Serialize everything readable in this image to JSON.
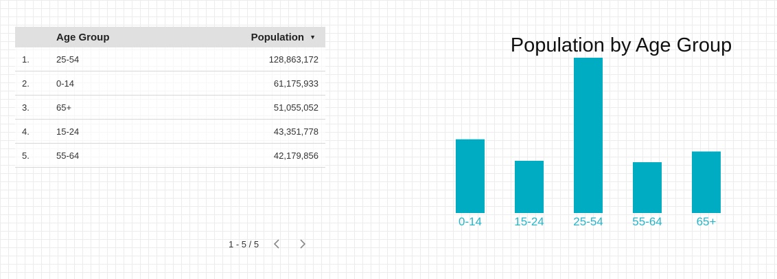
{
  "table": {
    "headers": {
      "name": "Age Group",
      "value": "Population",
      "sort_icon": "sort-descending-icon"
    },
    "rows": [
      {
        "index": "1.",
        "group": "25-54",
        "population": "128,863,172"
      },
      {
        "index": "2.",
        "group": "0-14",
        "population": "61,175,933"
      },
      {
        "index": "3.",
        "group": "65+",
        "population": "51,055,052"
      },
      {
        "index": "4.",
        "group": "15-24",
        "population": "43,351,778"
      },
      {
        "index": "5.",
        "group": "55-64",
        "population": "42,179,856"
      }
    ],
    "pagination": {
      "label": "1 - 5 / 5",
      "prev_icon": "chevron-left-icon",
      "next_icon": "chevron-right-icon"
    }
  },
  "chart_data": {
    "type": "bar",
    "title": "Population by Age Group",
    "categories": [
      "0-14",
      "15-24",
      "25-54",
      "55-64",
      "65+"
    ],
    "values": [
      61175933,
      43351778,
      128863172,
      42179856,
      51055052
    ],
    "xlabel": "",
    "ylabel": "",
    "ylim": [
      0,
      128863172
    ],
    "grid": false,
    "bar_color": "#00acc1",
    "label_color": "#26b5c7"
  }
}
